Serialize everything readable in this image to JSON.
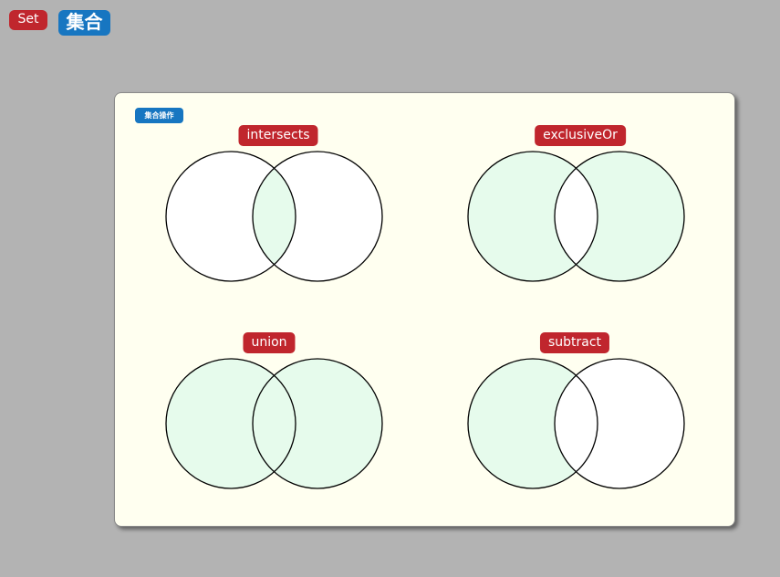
{
  "header": {
    "tag_en": "Set",
    "tag_zh": "集合"
  },
  "panel": {
    "badge": "集合操作",
    "operations": [
      {
        "label": "intersects",
        "shaded": "intersection"
      },
      {
        "label": "exclusiveOr",
        "shaded": "outer"
      },
      {
        "label": "union",
        "shaded": "all"
      },
      {
        "label": "subtract",
        "shaded": "left-only"
      }
    ]
  },
  "colors": {
    "background": "#b3b3b3",
    "panel": "#fffff0",
    "fill": "#e6fbec",
    "circle_stroke": "#000000",
    "red_tag": "#c0262d",
    "blue_tag": "#1776c1"
  }
}
